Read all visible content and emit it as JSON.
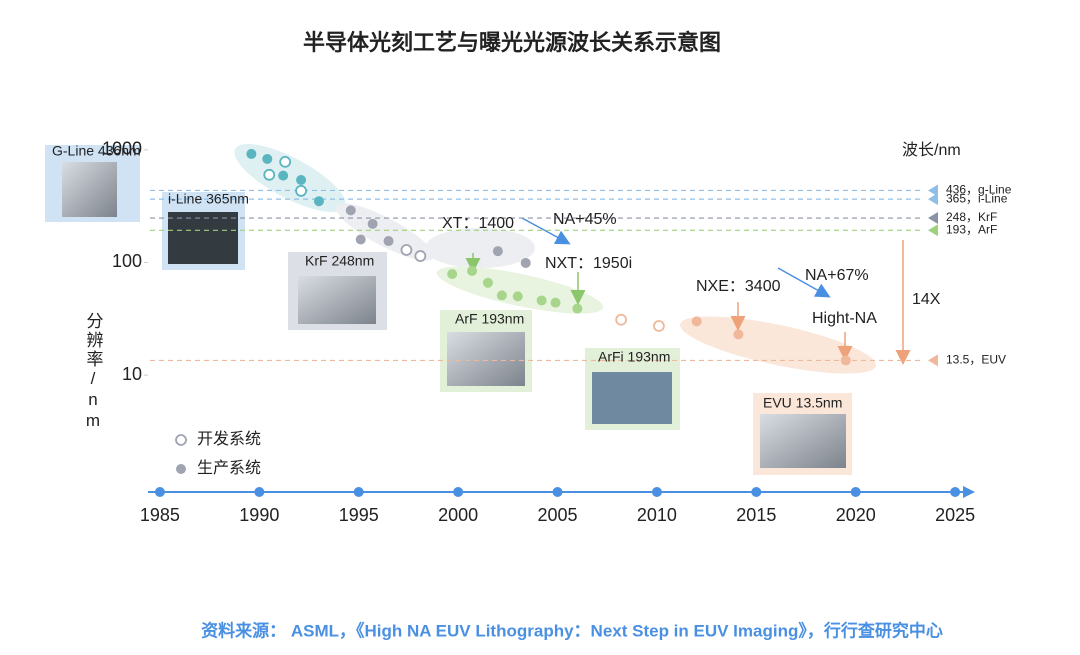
{
  "chart_data": {
    "type": "scatter",
    "title": "半导体光刻工艺与曝光光源波长关系示意图",
    "ylabel": "分辨率/nm",
    "log_y": true,
    "xlim": [
      1984.4,
      2026
    ],
    "xticks": [
      1985,
      1990,
      1995,
      2000,
      2005,
      2010,
      2015,
      2020,
      2025
    ],
    "ylim": [
      3,
      1500
    ],
    "yticks": [
      10,
      100,
      1000
    ],
    "axis_color": "#4a90e2",
    "series": [
      {
        "name": "开发系统",
        "color": "#a0a4b0",
        "filled": false,
        "x": [
          1990.5,
          1991.3,
          1992.1,
          1997.4,
          1998.1,
          2008.2,
          2010.1
        ],
        "values": [
          600,
          782,
          432,
          129,
          114,
          31,
          27.3
        ],
        "colors": [
          "#5bb5c0",
          "#5bb5c0",
          "#5bb5c0",
          "#a0a4b0",
          "#a0a4b0",
          "#f0b89a",
          "#f0b89a"
        ]
      },
      {
        "name": "生产系统",
        "color": "#a0a4b0",
        "filled": true,
        "x": [
          1989.6,
          1990.4,
          1991.2,
          1992.1,
          1993.0,
          1994.6,
          1995.7,
          1995.1,
          1996.5,
          2002.0,
          2003.4,
          1999.7,
          2000.7,
          2001.5,
          2002.2,
          2003.0,
          2004.2,
          2004.9,
          2006.0,
          2012.0,
          2014.1,
          2019.5
        ],
        "values": [
          920,
          830,
          590,
          540,
          350,
          290,
          220,
          160,
          155,
          126,
          99,
          79,
          84,
          66,
          51,
          50,
          46,
          44,
          39,
          30,
          23,
          13.5
        ],
        "colors": [
          "#5bb5c0",
          "#5bb5c0",
          "#5bb5c0",
          "#5bb5c0",
          "#5bb5c0",
          "#a0a4b0",
          "#a0a4b0",
          "#a0a4b0",
          "#a0a4b0",
          "#a0a4b0",
          "#a0a4b0",
          "#a8d58c",
          "#a8d58c",
          "#a8d58c",
          "#a8d58c",
          "#a8d58c",
          "#a8d58c",
          "#a8d58c",
          "#a8d58c",
          "#f0b89a",
          "#f0b89a",
          "#f0b89a"
        ]
      }
    ],
    "wavelength_title": "波长/nm",
    "wavelengths": [
      {
        "value": 436,
        "label": "436，g-Line",
        "color": "#8fbfe6"
      },
      {
        "value": 365,
        "label": "365，i-Line",
        "color": "#8fbfe6"
      },
      {
        "value": 248,
        "label": "248，KrF",
        "color": "#8a93a6"
      },
      {
        "value": 193,
        "label": "193，ArF",
        "color": "#9fd07e"
      },
      {
        "value": 13.5,
        "label": "13.5，EUV",
        "color": "#f0b89a"
      }
    ],
    "photo_labels": [
      "G-Line 436nm",
      "i-Line 365nm",
      "KrF 248nm",
      "ArF 193nm",
      "ArFi 193nm",
      "EVU 13.5nm"
    ],
    "annotations": [
      "XT：1400",
      "NA+45%",
      "NXT：1950i",
      "NXE：3400",
      "NA+67%",
      "Hight-NA",
      "14X"
    ],
    "source": "资料来源： ASML，《High NA EUV Lithography：Next Step in EUV Imaging》，行行查研究中心"
  }
}
